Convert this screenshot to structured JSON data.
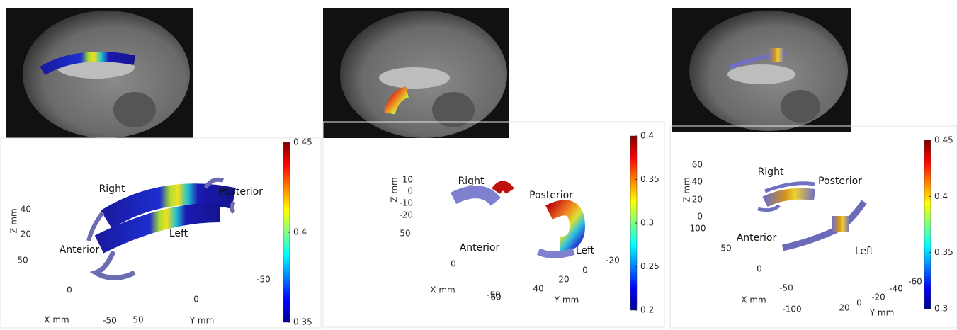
{
  "panels": [
    {
      "labels": {
        "right": "Right",
        "posterior": "Posterior",
        "left": "Left",
        "anterior": "Anterior"
      },
      "z_axis": {
        "label": "Z mm",
        "ticks": [
          40,
          20
        ]
      },
      "x_axis": {
        "label": "X mm",
        "ticks": [
          50,
          0,
          -50
        ]
      },
      "y_axis": {
        "label": "Y mm",
        "ticks": [
          50,
          0,
          -50
        ]
      },
      "colorbar": {
        "lim": [
          0.35,
          0.45
        ],
        "ticks": [
          0.35,
          0.4,
          0.45
        ]
      }
    },
    {
      "labels": {
        "right": "Right",
        "posterior": "Posterior",
        "left": "Left",
        "anterior": "Anterior"
      },
      "z_axis": {
        "label": "Z mm",
        "ticks": [
          10,
          0,
          -10,
          -20
        ]
      },
      "x_axis": {
        "label": "X mm",
        "ticks": [
          50,
          0,
          -50
        ]
      },
      "y_axis": {
        "label": "Y mm",
        "ticks": [
          60,
          40,
          20,
          0,
          -20
        ]
      },
      "colorbar": {
        "lim": [
          0.2,
          0.4
        ],
        "ticks": [
          0.2,
          0.25,
          0.3,
          0.35,
          0.4
        ]
      }
    },
    {
      "labels": {
        "right": "Right",
        "posterior": "Posterior",
        "left": "Left",
        "anterior": "Anterior"
      },
      "z_axis": {
        "label": "Z mm",
        "ticks": [
          60,
          40,
          20,
          0
        ]
      },
      "x_axis": {
        "label": "X mm",
        "ticks": [
          100,
          50,
          0,
          -50,
          -100
        ]
      },
      "y_axis": {
        "label": "Y mm",
        "ticks": [
          20,
          0,
          -20,
          -40,
          -60
        ]
      },
      "colorbar": {
        "lim": [
          0.3,
          0.45
        ],
        "ticks": [
          0.3,
          0.35,
          0.4,
          0.45
        ]
      }
    }
  ]
}
